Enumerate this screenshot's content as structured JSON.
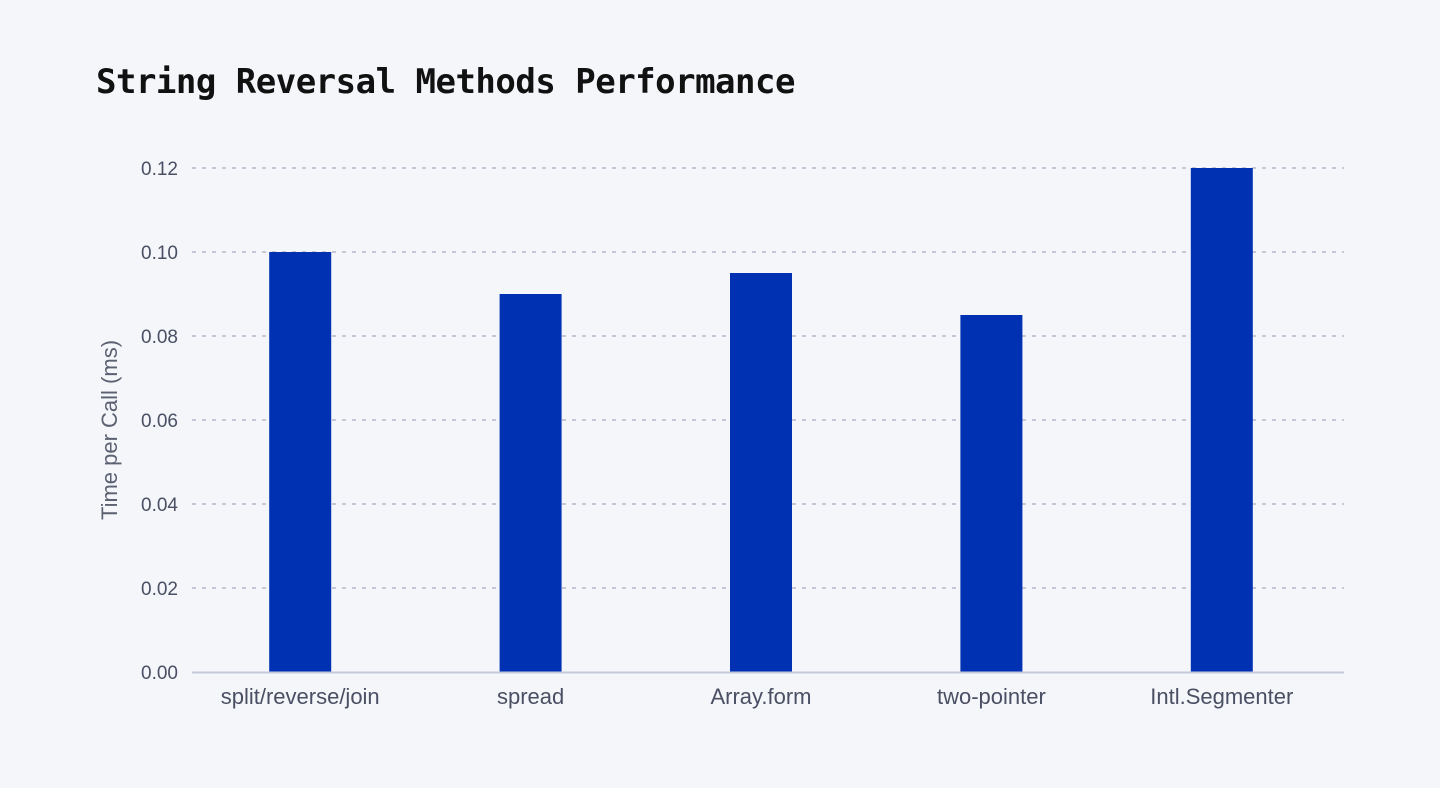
{
  "colors": {
    "bar": "#0031b3",
    "grid": "#c4c7d6",
    "axis": "#c6c9dc"
  },
  "chart_data": {
    "type": "bar",
    "title": "String Reversal Methods Performance",
    "xlabel": "",
    "ylabel": "Time per Call (ms)",
    "categories": [
      "split/reverse/join",
      "spread",
      "Array.form",
      "two-pointer",
      "Intl.Segmenter"
    ],
    "values": [
      0.1,
      0.09,
      0.095,
      0.085,
      0.12
    ],
    "ylim": [
      0,
      0.12
    ],
    "yticks": [
      "0.00",
      "0.02",
      "0.04",
      "0.06",
      "0.08",
      "0.10",
      "0.12"
    ],
    "grid": true,
    "legend": "none"
  }
}
